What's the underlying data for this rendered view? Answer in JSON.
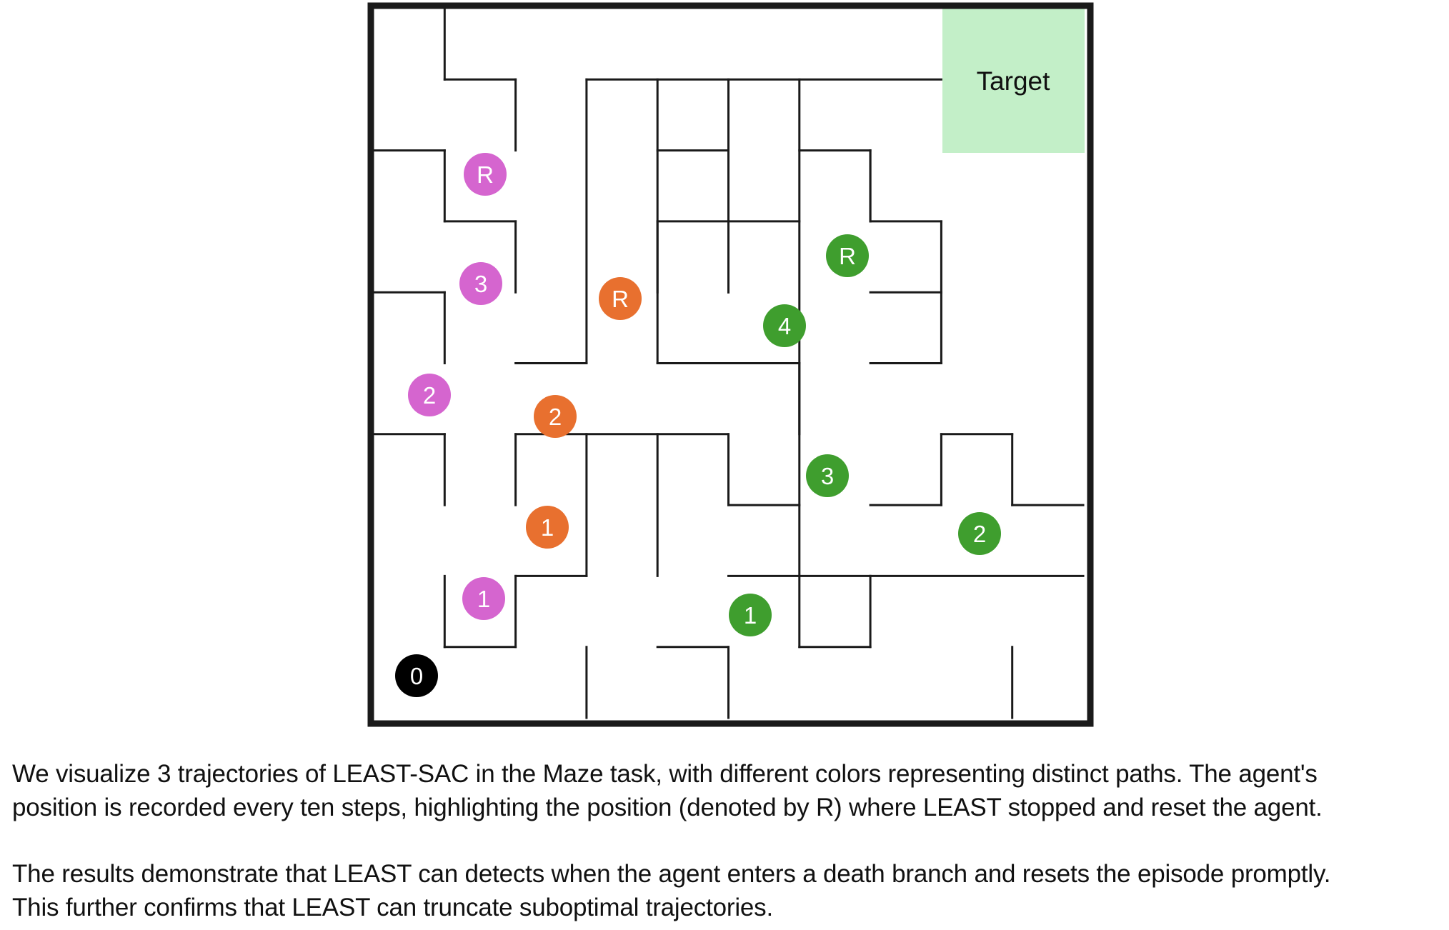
{
  "maze": {
    "target_label": "Target",
    "start_label": "0",
    "colors": {
      "wall": "#1a1a1a",
      "target_fill": "#c3efc8",
      "start": "#000000",
      "pink": "#d565cf",
      "orange": "#e8702f",
      "green": "#3f9e2e"
    },
    "trajectories": [
      {
        "color": "pink",
        "markers": [
          "1",
          "2",
          "3",
          "R"
        ]
      },
      {
        "color": "orange",
        "markers": [
          "1",
          "2",
          "R"
        ]
      },
      {
        "color": "green",
        "markers": [
          "1",
          "2",
          "3",
          "4",
          "R"
        ]
      }
    ]
  },
  "caption": {
    "paragraph1": [
      "We visualize 3 trajectories of LEAST-SAC in the Maze task, with different colors representing distinct paths. The agent's",
      "position is recorded every ten steps, highlighting the position (denoted by R) where LEAST stopped and reset the agent."
    ],
    "paragraph2": [
      "The results demonstrate that LEAST can  detects when the agent enters a death branch and resets the episode promptly.",
      "This further confirms that LEAST can truncate suboptimal trajectories."
    ]
  }
}
